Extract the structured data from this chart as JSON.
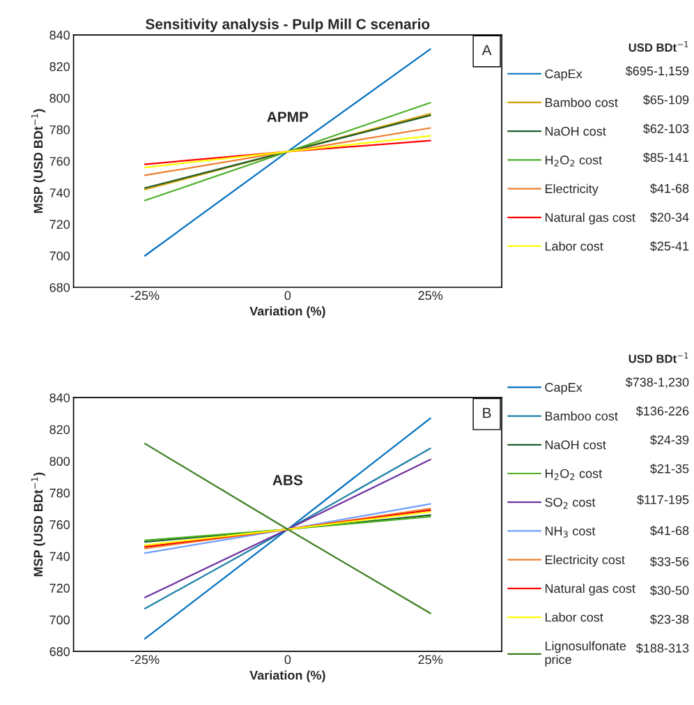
{
  "chart_data": [
    {
      "type": "line",
      "title": "Sensitivity analysis - Pulp Mill C scenario",
      "xlabel": "Variation (%)",
      "ylabel": "MSP (USD BDt$^{−1}$)",
      "legend_title": "USD BDt$^{−1}$",
      "categories": [
        "-25%",
        "0",
        "25%"
      ],
      "ylim": [
        680,
        840
      ],
      "yticks": [
        680,
        700,
        720,
        740,
        760,
        780,
        800,
        820,
        840
      ],
      "grid": false,
      "legend": "right",
      "marker": "none",
      "line_style": "solid",
      "annotations": [
        "A",
        "APMP",
        "$695-1,159",
        "$65-109",
        "$62-103",
        "$85-141",
        "$41-68",
        "$20-34",
        "$25-41"
      ],
      "series": [
        {
          "name": "CapEx",
          "color": "#0070c0",
          "values": [
            700,
            766,
            831
          ]
        },
        {
          "name": "Bamboo cost",
          "color": "#d4a000",
          "values": [
            742,
            766,
            790
          ]
        },
        {
          "name": "NaOH cost",
          "color": "#1e5c2a",
          "values": [
            743,
            766,
            789
          ]
        },
        {
          "name": "H$_{2}$O$_{2}$ cost",
          "color": "#4caf27",
          "values": [
            735,
            766,
            797
          ]
        },
        {
          "name": "Electricity",
          "color": "#ed7d31",
          "values": [
            751,
            766,
            781
          ]
        },
        {
          "name": "Natural gas cost",
          "color": "#ff0000",
          "values": [
            758,
            766,
            773
          ]
        },
        {
          "name": "Labor cost",
          "color": "#ffff00",
          "values": [
            756,
            766,
            776
          ]
        }
      ]
    },
    {
      "type": "line",
      "xlabel": "Variation (%)",
      "ylabel": "MSP (USD BDt$^{−1}$)",
      "legend_title": "USD BDt$^{−1}$",
      "categories": [
        "-25%",
        "0",
        "25%"
      ],
      "ylim": [
        680,
        840
      ],
      "yticks": [
        680,
        700,
        720,
        740,
        760,
        780,
        800,
        820,
        840
      ],
      "grid": false,
      "legend": "right",
      "marker": "none",
      "line_style": "solid",
      "annotations": [
        "B",
        "ABS",
        "$738-1,230",
        "$136-226",
        "$24-39",
        "$21-35",
        "$117-195",
        "$41-68",
        "$33-56",
        "$30-50",
        "$23-38",
        "$188-313"
      ],
      "series": [
        {
          "name": "CapEx",
          "color": "#0070c0",
          "values": [
            688,
            757,
            827
          ]
        },
        {
          "name": "Bamboo cost",
          "color": "#1b7fa6",
          "values": [
            707,
            757,
            808
          ]
        },
        {
          "name": "NaOH cost",
          "color": "#1e5c2a",
          "values": [
            749,
            757,
            766
          ]
        },
        {
          "name": "H$_{2}$O$_{2}$ cost",
          "color": "#4caf27",
          "values": [
            750,
            757,
            765
          ]
        },
        {
          "name": "SO$_{2}$ cost",
          "color": "#7030a0",
          "values": [
            714,
            757,
            801
          ]
        },
        {
          "name": "NH$_{3}$ cost",
          "color": "#6f9cff",
          "values": [
            742,
            757,
            773
          ]
        },
        {
          "name": "Electricity cost",
          "color": "#ed7d31",
          "values": [
            745,
            757,
            770
          ]
        },
        {
          "name": "Natural gas cost",
          "color": "#ff0000",
          "values": [
            746,
            757,
            769
          ]
        },
        {
          "name": "Labor cost",
          "color": "#ffff00",
          "values": [
            747,
            757,
            768
          ]
        },
        {
          "name": "Lignosulfonate price",
          "color": "#3a7d1e",
          "values": [
            811,
            757,
            704
          ]
        }
      ]
    }
  ]
}
